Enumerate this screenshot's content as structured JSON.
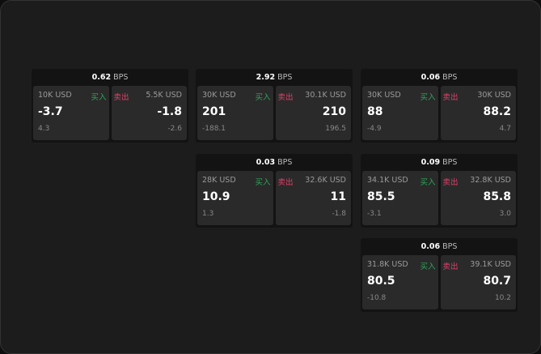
{
  "unit_label": "BPS",
  "buy_label": "买入",
  "sell_label": "卖出",
  "colors": {
    "buy": "#2fa45a",
    "sell": "#e0406a",
    "background": "#1c1c1c",
    "panel": "#2a2a2a"
  },
  "cards": [
    {
      "spread": "0.62",
      "buy": {
        "qty": "10K USD",
        "price": "-3.7",
        "change": "4.3"
      },
      "sell": {
        "qty": "5.5K USD",
        "price": "-1.8",
        "change": "-2.6"
      }
    },
    {
      "spread": "2.92",
      "buy": {
        "qty": "30K USD",
        "price": "201",
        "change": "-188.1"
      },
      "sell": {
        "qty": "30.1K USD",
        "price": "210",
        "change": "196.5"
      }
    },
    {
      "spread": "0.06",
      "buy": {
        "qty": "30K USD",
        "price": "88",
        "change": "-4.9"
      },
      "sell": {
        "qty": "30K USD",
        "price": "88.2",
        "change": "4.7"
      }
    },
    {
      "spread": "0.03",
      "buy": {
        "qty": "28K USD",
        "price": "10.9",
        "change": "1.3"
      },
      "sell": {
        "qty": "32.6K USD",
        "price": "11",
        "change": "-1.8"
      }
    },
    {
      "spread": "0.09",
      "buy": {
        "qty": "34.1K USD",
        "price": "85.5",
        "change": "-3.1"
      },
      "sell": {
        "qty": "32.8K USD",
        "price": "85.8",
        "change": "3.0"
      }
    },
    {
      "spread": "0.06",
      "buy": {
        "qty": "31.8K USD",
        "price": "80.5",
        "change": "-10.8"
      },
      "sell": {
        "qty": "39.1K USD",
        "price": "80.7",
        "change": "10.2"
      }
    }
  ]
}
